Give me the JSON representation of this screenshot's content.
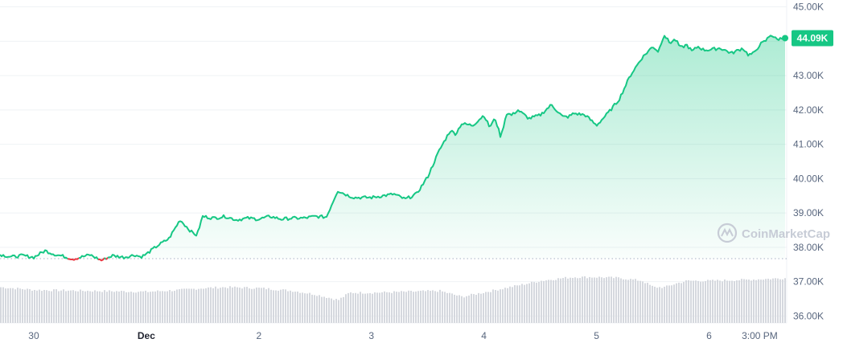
{
  "watermark": "CoinMarketCap",
  "current_label": "44.09K",
  "colors": {
    "up": "#16c784",
    "down": "#ea3943",
    "grid": "#eff2f5",
    "axis_text": "#58667e",
    "volume": "#d5d8de"
  },
  "chart_data": {
    "type": "area",
    "title": "",
    "xlabel": "",
    "ylabel": "",
    "ylim": [
      35800,
      45200
    ],
    "grid": true,
    "baseline": 37670,
    "y_ticks": [
      "45.00K",
      "44.00K",
      "43.00K",
      "42.00K",
      "41.00K",
      "40.00K",
      "39.00K",
      "38.00K",
      "37.00K",
      "36.00K"
    ],
    "y_tick_values": [
      45000,
      44000,
      43000,
      42000,
      41000,
      40000,
      39000,
      38000,
      37000,
      36000
    ],
    "x_ticks": [
      "30",
      "Dec",
      "2",
      "3",
      "4",
      "5",
      "6",
      "3:00 PM"
    ],
    "x_tick_days": [
      0.0,
      1.0,
      2.0,
      3.0,
      4.0,
      5.0,
      6.0,
      6.45
    ],
    "x_range_days": [
      -0.3,
      6.69
    ],
    "series": [
      {
        "x": [
          -0.3,
          -0.2,
          -0.1,
          0.0,
          0.1,
          0.2,
          0.25,
          0.35,
          0.5,
          0.6,
          0.7,
          0.8,
          0.9,
          0.95,
          1.0,
          1.1,
          1.2,
          1.3,
          1.4,
          1.45,
          1.5,
          1.6,
          1.7,
          1.8,
          1.9,
          2.0,
          2.1,
          2.2,
          2.3,
          2.4,
          2.5,
          2.6,
          2.7,
          2.8,
          2.85,
          2.9,
          3.0,
          3.1,
          3.2,
          3.3,
          3.4,
          3.5,
          3.6,
          3.7,
          3.75,
          3.8,
          3.9,
          4.0,
          4.05,
          4.1,
          4.15,
          4.2,
          4.25,
          4.3,
          4.4,
          4.5,
          4.6,
          4.7,
          4.75,
          4.8,
          4.9,
          5.0,
          5.1,
          5.2,
          5.3,
          5.4,
          5.5,
          5.55,
          5.6,
          5.65,
          5.7,
          5.75,
          5.8,
          5.85,
          5.9,
          5.95,
          6.0,
          6.1,
          6.2,
          6.3,
          6.35,
          6.4,
          6.45,
          6.5,
          6.55,
          6.6,
          6.65
        ],
        "values": [
          37790,
          37720,
          37760,
          37710,
          37900,
          37780,
          37750,
          37660,
          37780,
          37620,
          37760,
          37710,
          37780,
          37720,
          37800,
          38050,
          38250,
          38800,
          38450,
          38350,
          38900,
          38850,
          38900,
          38800,
          38850,
          38820,
          38900,
          38820,
          38850,
          38850,
          38900,
          38880,
          39650,
          39500,
          39450,
          39450,
          39450,
          39500,
          39550,
          39400,
          39550,
          40050,
          40800,
          41400,
          41300,
          41600,
          41550,
          41850,
          41500,
          41750,
          41200,
          41900,
          41850,
          42000,
          41750,
          41850,
          42150,
          41800,
          41800,
          41900,
          41850,
          41550,
          41900,
          42300,
          43000,
          43500,
          43850,
          43700,
          44200,
          43950,
          44050,
          43800,
          43900,
          43700,
          43850,
          43750,
          43750,
          43800,
          43650,
          43800,
          43600,
          43650,
          43900,
          44000,
          44200,
          44050,
          44090
        ]
      }
    ],
    "volume": {
      "x": [
        -0.3,
        0.0,
        0.5,
        1.0,
        1.3,
        1.5,
        1.7,
        2.0,
        2.3,
        2.5,
        2.7,
        2.8,
        3.0,
        3.3,
        3.6,
        3.8,
        3.9,
        4.1,
        4.3,
        4.5,
        4.7,
        4.8,
        5.0,
        5.2,
        5.4,
        5.5,
        5.6,
        5.7,
        5.8,
        6.0,
        6.3,
        6.5,
        6.69
      ],
      "values": [
        0.78,
        0.72,
        0.7,
        0.68,
        0.72,
        0.76,
        0.78,
        0.76,
        0.7,
        0.62,
        0.5,
        0.66,
        0.66,
        0.68,
        0.7,
        0.57,
        0.62,
        0.72,
        0.82,
        0.92,
        0.98,
        1.0,
        1.0,
        0.98,
        0.92,
        0.78,
        0.78,
        0.86,
        0.92,
        0.92,
        0.94,
        0.96,
        0.98
      ]
    }
  }
}
